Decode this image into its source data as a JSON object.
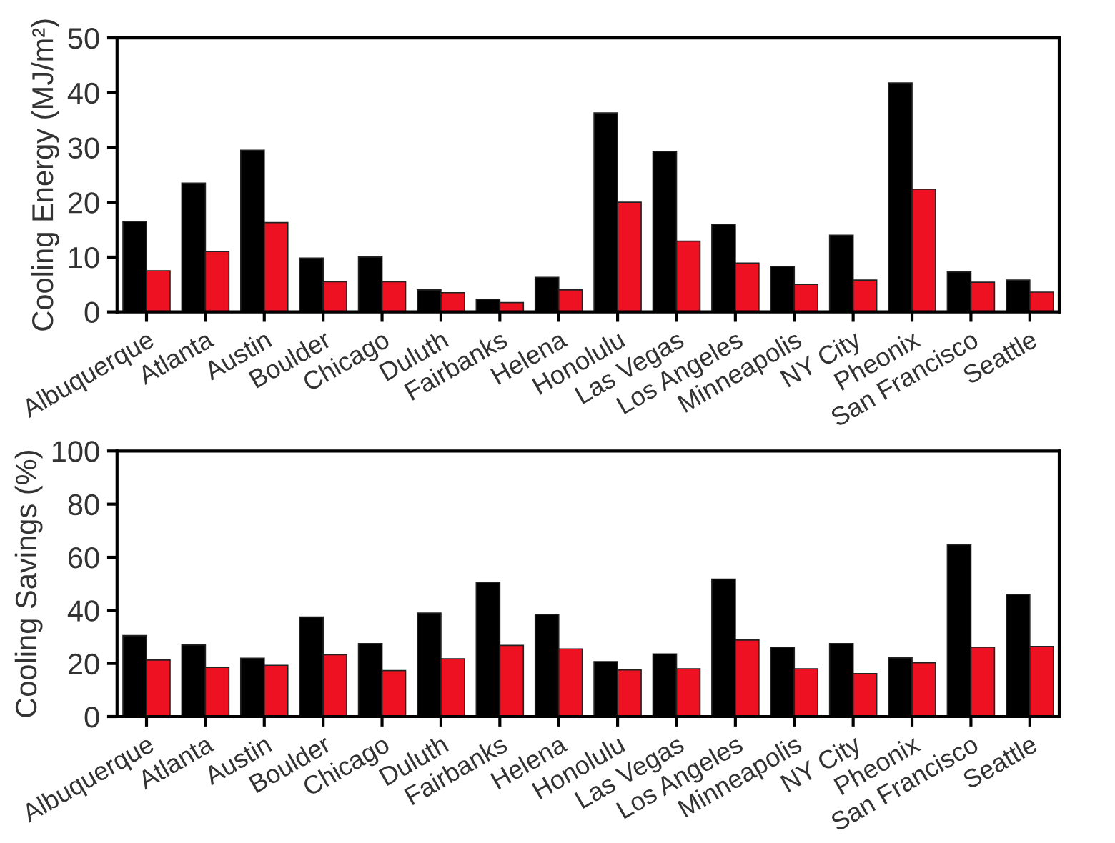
{
  "chart_data": [
    {
      "type": "bar",
      "ylabel": "Cooling Energy (MJ/m²)",
      "categories": [
        "Albuquerque",
        "Atlanta",
        "Austin",
        "Boulder",
        "Chicago",
        "Duluth",
        "Fairbanks",
        "Helena",
        "Honolulu",
        "Las Vegas",
        "Los Angeles",
        "Minneapolis",
        "NY City",
        "Pheonix",
        "San Francisco",
        "Seattle"
      ],
      "series": [
        {
          "color": "#000000",
          "values": [
            16.5,
            23.5,
            29.5,
            9.8,
            10,
            4,
            2.3,
            6.3,
            36.3,
            29.3,
            16,
            8.3,
            14,
            41.8,
            7.3,
            5.8
          ]
        },
        {
          "color": "#ee1122",
          "values": [
            7.5,
            11,
            16.3,
            5.5,
            5.5,
            3.5,
            1.7,
            4,
            20,
            12.9,
            8.9,
            5,
            5.8,
            22.4,
            5.4,
            3.6
          ]
        }
      ],
      "ylim": [
        0,
        50
      ],
      "yticks": [
        0,
        10,
        20,
        30,
        40,
        50
      ],
      "grid": false,
      "legend": false
    },
    {
      "type": "bar",
      "ylabel": "Cooling Savings (%)",
      "categories": [
        "Albuquerque",
        "Atlanta",
        "Austin",
        "Boulder",
        "Chicago",
        "Duluth",
        "Fairbanks",
        "Helena",
        "Honolulu",
        "Las Vegas",
        "Los Angeles",
        "Minneapolis",
        "NY City",
        "Pheonix",
        "San Francisco",
        "Seattle"
      ],
      "series": [
        {
          "color": "#000000",
          "values": [
            30.5,
            27,
            22,
            37.5,
            27.5,
            39,
            50.5,
            38.5,
            20.7,
            23.6,
            51.8,
            26.1,
            27.5,
            22.1,
            64.7,
            46
          ]
        },
        {
          "color": "#ee1122",
          "values": [
            21.3,
            18.5,
            19.3,
            23.3,
            17.3,
            21.8,
            26.8,
            25.5,
            17.6,
            18,
            28.8,
            18,
            16.2,
            20.3,
            26.1,
            26.4
          ]
        }
      ],
      "ylim": [
        0,
        100
      ],
      "yticks": [
        0,
        20,
        40,
        60,
        80,
        100
      ],
      "grid": false,
      "legend": false
    }
  ]
}
